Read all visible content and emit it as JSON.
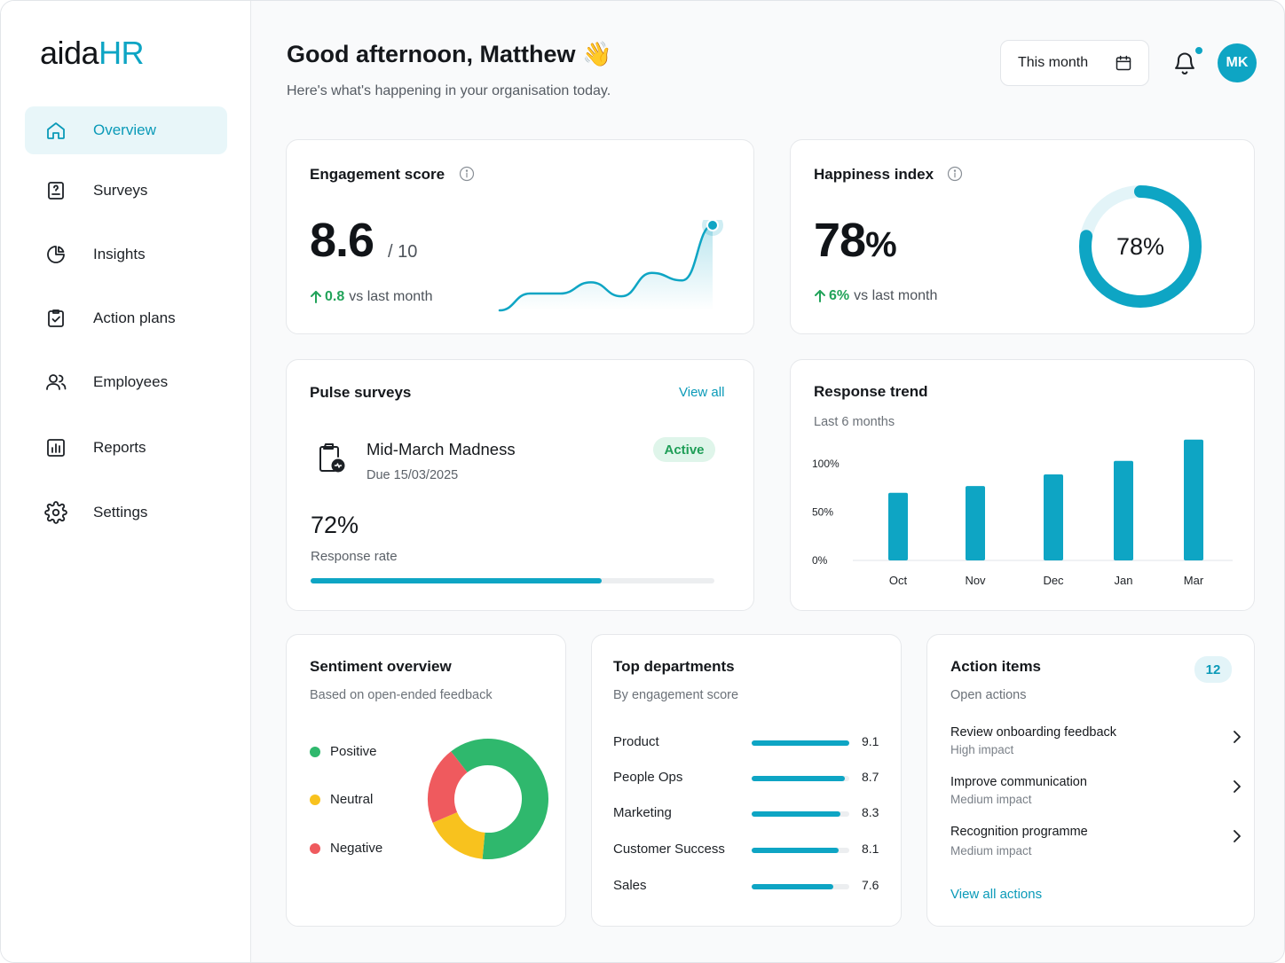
{
  "brand": {
    "logo_part1": "aida",
    "logo_part2": "HR",
    "accent": "#0ea5c4"
  },
  "sidebar": {
    "items": [
      {
        "label": "Overview",
        "icon": "home-icon",
        "active": true
      },
      {
        "label": "Surveys",
        "icon": "survey-icon",
        "active": false
      },
      {
        "label": "Insights",
        "icon": "pie-chart-icon",
        "active": false
      },
      {
        "label": "Action plans",
        "icon": "clipboard-check-icon",
        "active": false
      },
      {
        "label": "Employees",
        "icon": "users-icon",
        "active": false
      },
      {
        "label": "Reports",
        "icon": "bar-chart-icon",
        "active": false
      },
      {
        "label": "Settings",
        "icon": "gear-icon",
        "active": false
      }
    ]
  },
  "header": {
    "greeting": "Good afternoon, Matthew",
    "greeting_emoji": "👋",
    "subtitle": "Here's what's happening in your organisation today.",
    "period_button": "This month",
    "avatar_initials": "MK"
  },
  "engagement": {
    "title": "Engagement score",
    "value": "8.6",
    "suffix": "/ 10",
    "delta": "0.8",
    "delta_text": "vs last month",
    "sparkline": [
      2,
      20,
      20,
      32,
      17,
      42,
      34,
      93
    ]
  },
  "happiness": {
    "title": "Happiness index",
    "value": "78",
    "unit": "%",
    "ring_label": "78%",
    "ring_fraction": 0.78,
    "delta": "6%",
    "delta_text": "vs last month"
  },
  "pulse": {
    "title": "Pulse surveys",
    "view_all": "View all",
    "survey_name": "Mid-March Madness",
    "due": "Due 15/03/2025",
    "status": "Active",
    "rate": "72%",
    "rate_label": "Response rate",
    "rate_fraction": 0.72
  },
  "response_trend": {
    "title": "Response trend",
    "subtitle": "Last 6 months"
  },
  "chart_data": {
    "type": "bar",
    "title": "Response trend",
    "subtitle": "Last 6 months",
    "categories": [
      "Oct",
      "Nov",
      "Dec",
      "Jan",
      "Mar"
    ],
    "values": [
      70,
      77,
      89,
      103,
      125
    ],
    "yticks": [
      "100%",
      "50%",
      "0%"
    ],
    "ytick_values": [
      100,
      50,
      0
    ],
    "ylim": [
      0,
      130
    ],
    "grid": false,
    "color": "#0ea5c4"
  },
  "sentiment": {
    "title": "Sentiment overview",
    "subtitle": "Based on open-ended feedback",
    "legend": [
      {
        "label": "Positive",
        "color": "#2fb86d"
      },
      {
        "label": "Neutral",
        "color": "#f8c21e"
      },
      {
        "label": "Negative",
        "color": "#ef5a5e"
      }
    ],
    "shares": [
      0.62,
      0.17,
      0.21
    ]
  },
  "departments": {
    "title": "Top departments",
    "subtitle": "By engagement score",
    "rows": [
      {
        "name": "Product",
        "value": "9.1",
        "score": 9.1
      },
      {
        "name": "People Ops",
        "value": "8.7",
        "score": 8.7
      },
      {
        "name": "Marketing",
        "value": "8.3",
        "score": 8.3
      },
      {
        "name": "Customer Success",
        "value": "8.1",
        "score": 8.1
      },
      {
        "name": "Sales",
        "value": "7.6",
        "score": 7.6
      }
    ]
  },
  "actions": {
    "title": "Action items",
    "count": "12",
    "subtitle": "Open actions",
    "items": [
      {
        "title": "Review onboarding feedback",
        "impact": "High impact"
      },
      {
        "title": "Improve communication",
        "impact": "Medium impact"
      },
      {
        "title": "Recognition programme",
        "impact": "Medium impact"
      }
    ],
    "view_all": "View all actions"
  }
}
